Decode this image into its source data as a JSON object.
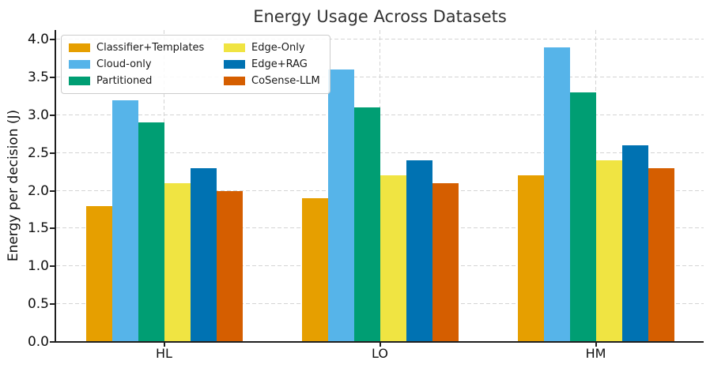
{
  "chart_data": {
    "type": "bar",
    "title": "Energy Usage Across Datasets",
    "xlabel": "",
    "ylabel": "Energy per decision (J)",
    "categories": [
      "HL",
      "LO",
      "HM"
    ],
    "series": [
      {
        "name": "Classifier+Templates",
        "color": "#E69F00",
        "values": [
          1.8,
          1.9,
          2.2
        ]
      },
      {
        "name": "Cloud-only",
        "color": "#56B4E9",
        "values": [
          3.2,
          3.6,
          3.9
        ]
      },
      {
        "name": "Partitioned",
        "color": "#009E73",
        "values": [
          2.9,
          3.1,
          3.3
        ]
      },
      {
        "name": "Edge-Only",
        "color": "#F0E442",
        "values": [
          2.1,
          2.2,
          2.4
        ]
      },
      {
        "name": "Edge+RAG",
        "color": "#0072B2",
        "values": [
          2.3,
          2.4,
          2.6
        ]
      },
      {
        "name": "CoSense-LLM",
        "color": "#D55E00",
        "values": [
          2.0,
          2.1,
          2.3
        ]
      }
    ],
    "ylim": [
      0.0,
      4.0
    ],
    "ytick_labels": [
      "0.0",
      "0.5",
      "1.0",
      "1.5",
      "2.0",
      "2.5",
      "3.0",
      "3.5",
      "4.0"
    ],
    "grid": "dashed horizontal and vertical at category centers",
    "grid_color": "#d4d4d4",
    "spine_color": "#1f1f1f",
    "legend_position": "upper left",
    "legend_columns": 2
  }
}
